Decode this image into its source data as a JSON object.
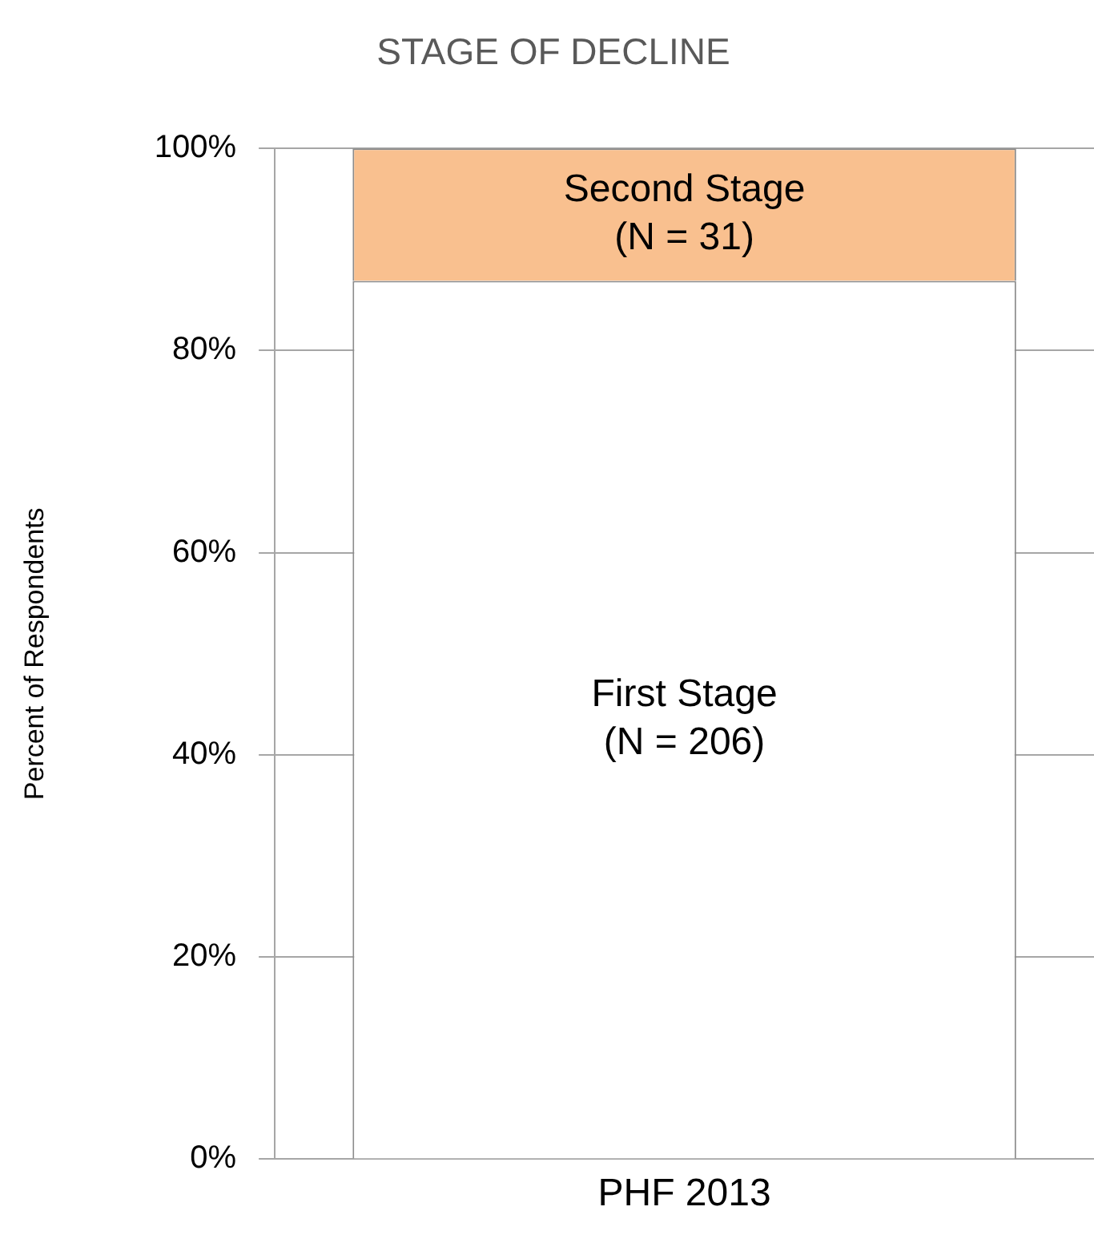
{
  "chart_data": {
    "type": "bar",
    "title": "STAGE OF DECLINE",
    "ylabel": "Percent of Respondents",
    "categories": [
      "PHF 2013"
    ],
    "stacked": true,
    "series": [
      {
        "name": "First Stage",
        "color": "#ffffff",
        "values": [
          86.9
        ]
      },
      {
        "name": "Second Stage",
        "color": "#f9c08f",
        "values": [
          13.1
        ]
      }
    ],
    "annotations": [
      "(N = 206)",
      "(N = 31)"
    ],
    "ylim": [
      0,
      100
    ],
    "yticks": [
      {
        "value": 0,
        "label": "0%"
      },
      {
        "value": 20,
        "label": "20%"
      },
      {
        "value": 40,
        "label": "40%"
      },
      {
        "value": 60,
        "label": "60%"
      },
      {
        "value": 80,
        "label": "80%"
      },
      {
        "value": 100,
        "label": "100%"
      }
    ],
    "grid": "y",
    "legend": false
  }
}
